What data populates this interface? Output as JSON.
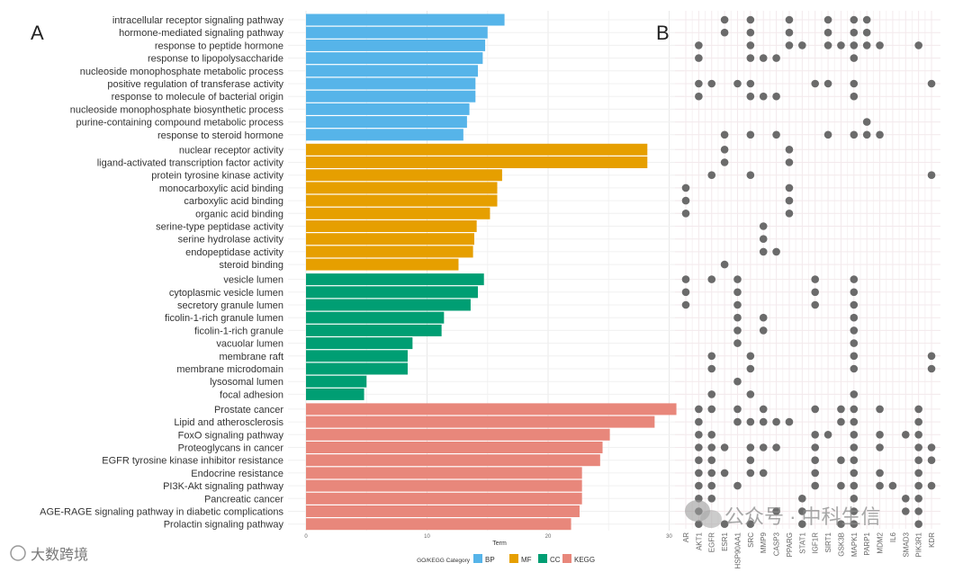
{
  "panels": {
    "a": "A",
    "b": "B"
  },
  "colors": {
    "BP": "#56b4e9",
    "MF": "#e69f00",
    "CC": "#009e73",
    "KEGG": "#e8877b",
    "dot": "#6b6b6b"
  },
  "chart_data": [
    {
      "type": "bar",
      "orientation": "horizontal",
      "xlabel": "Term",
      "xlim": [
        0,
        30.8
      ],
      "xticks": [
        "0",
        "10",
        "20",
        "30"
      ],
      "legend": {
        "title": "GO/KEGG Category",
        "placement": "bottom",
        "entries": [
          "BP",
          "MF",
          "CC",
          "KEGG"
        ]
      },
      "series": [
        {
          "name": "BP",
          "terms": [
            "intracellular receptor signaling pathway",
            "hormone-mediated signaling pathway",
            "response to peptide hormone",
            "response to lipopolysaccharide",
            "nucleoside monophosphate metabolic process",
            "positive regulation of transferase activity",
            "response to molecule of bacterial origin",
            "nucleoside monophosphate biosynthetic process",
            "purine-containing compound metabolic process",
            "response to steroid hormone"
          ],
          "values": [
            16.4,
            15.0,
            14.8,
            14.6,
            14.2,
            14.0,
            14.0,
            13.5,
            13.3,
            13.0
          ]
        },
        {
          "name": "MF",
          "terms": [
            "nuclear receptor activity",
            "ligand-activated transcription factor activity",
            "protein tyrosine kinase activity",
            "monocarboxylic acid binding",
            "carboxylic acid binding",
            "organic acid binding",
            "serine-type peptidase activity",
            "serine hydrolase activity",
            "endopeptidase activity",
            "steroid binding"
          ],
          "values": [
            28.2,
            28.2,
            16.2,
            15.8,
            15.8,
            15.2,
            14.1,
            13.9,
            13.8,
            12.6
          ]
        },
        {
          "name": "CC",
          "terms": [
            "vesicle lumen",
            "cytoplasmic vesicle lumen",
            "secretory granule lumen",
            "ficolin-1-rich granule lumen",
            "ficolin-1-rich granule",
            "vacuolar lumen",
            "membrane raft",
            "membrane microdomain",
            "lysosomal lumen",
            "focal adhesion"
          ],
          "values": [
            14.7,
            14.2,
            13.6,
            11.4,
            11.2,
            8.8,
            8.4,
            8.4,
            5.0,
            4.8
          ]
        },
        {
          "name": "KEGG",
          "terms": [
            "Prostate cancer",
            "Lipid and atherosclerosis",
            "FoxO signaling pathway",
            "Proteoglycans in cancer",
            "EGFR tyrosine kinase inhibitor resistance",
            "Endocrine resistance",
            "PI3K-Akt signaling pathway",
            "Pancreatic cancer",
            "AGE-RAGE signaling pathway in diabetic complications",
            "Prolactin signaling pathway"
          ],
          "values": [
            30.6,
            28.8,
            25.1,
            24.5,
            24.3,
            22.8,
            22.8,
            22.8,
            22.6,
            21.9
          ]
        }
      ]
    },
    {
      "type": "scatter",
      "subtype": "dot-matrix",
      "genes": [
        "AR",
        "AKT1",
        "EGFR",
        "ESR1",
        "HSP90AA1",
        "SRC",
        "MMP9",
        "CASP3",
        "PPARG",
        "STAT1",
        "IGF1R",
        "SIRT1",
        "GSK3B",
        "MAPK1",
        "PARP1",
        "MDM2",
        "IL6",
        "SMAD3",
        "PIK3R1",
        "KDR"
      ],
      "memberships": [
        [
          3,
          5,
          8,
          11,
          13,
          14
        ],
        [
          3,
          5,
          8,
          11,
          13,
          14
        ],
        [
          1,
          5,
          8,
          9,
          11,
          12,
          13,
          14,
          15,
          18
        ],
        [
          1,
          5,
          6,
          7,
          13
        ],
        [],
        [
          1,
          2,
          4,
          5,
          10,
          11,
          13,
          19
        ],
        [
          1,
          5,
          6,
          7,
          13
        ],
        [],
        [
          14
        ],
        [
          3,
          5,
          7,
          11,
          13,
          14,
          15
        ],
        [
          3,
          8
        ],
        [
          3,
          8
        ],
        [
          2,
          5,
          19
        ],
        [
          0,
          8
        ],
        [
          0,
          8
        ],
        [
          0,
          8
        ],
        [
          6
        ],
        [
          6
        ],
        [
          6,
          7
        ],
        [
          3
        ],
        [
          0,
          2,
          4,
          10,
          13
        ],
        [
          0,
          4,
          10,
          13
        ],
        [
          0,
          4,
          10,
          13
        ],
        [
          4,
          6,
          13
        ],
        [
          4,
          6,
          13
        ],
        [
          4,
          13
        ],
        [
          2,
          5,
          13,
          19
        ],
        [
          2,
          5,
          13,
          19
        ],
        [
          4
        ],
        [
          2,
          5,
          13
        ],
        [
          1,
          2,
          4,
          6,
          10,
          12,
          13,
          15,
          18
        ],
        [
          1,
          4,
          5,
          6,
          7,
          8,
          12,
          13,
          18
        ],
        [
          1,
          2,
          10,
          11,
          13,
          15,
          17,
          18
        ],
        [
          1,
          2,
          3,
          5,
          6,
          7,
          10,
          13,
          15,
          18,
          19
        ],
        [
          1,
          2,
          5,
          10,
          12,
          13,
          18,
          19
        ],
        [
          1,
          2,
          3,
          5,
          6,
          10,
          13,
          15,
          18
        ],
        [
          1,
          2,
          4,
          10,
          12,
          13,
          15,
          16,
          18,
          19
        ],
        [
          1,
          2,
          9,
          13,
          17,
          18
        ],
        [
          1,
          7,
          9,
          13,
          17,
          18
        ],
        [
          1,
          3,
          5,
          9,
          12,
          13,
          18
        ]
      ]
    }
  ],
  "watermarks": {
    "left": "大数跨境",
    "right": "公众号 · 中科生信"
  }
}
